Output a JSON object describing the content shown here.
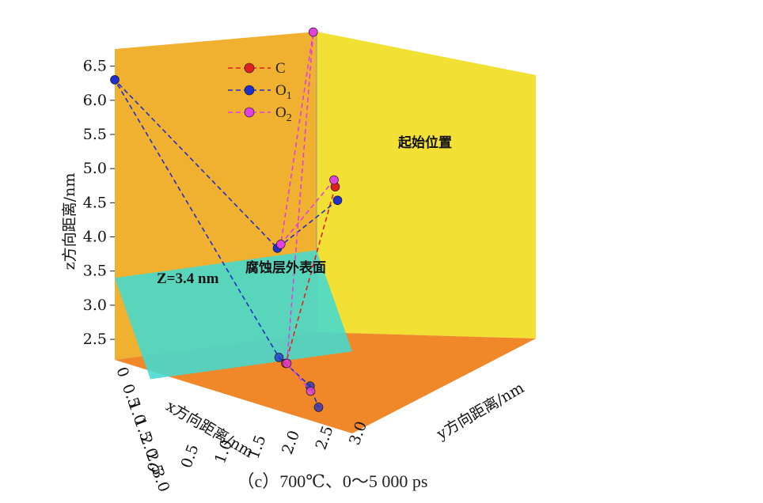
{
  "chart_data": {
    "type": "scatter",
    "subtype": "3d-trajectory",
    "caption": "（c）700℃、0～5 000 ps",
    "xlabel": "x方向距离/nm",
    "ylabel": "y方向距离/nm",
    "zlabel": "z方向距离/nm",
    "xlim": [
      0,
      3.0
    ],
    "ylim": [
      0,
      3.0
    ],
    "zlim": [
      2.2,
      6.6
    ],
    "x_ticks": [
      "0",
      "0.5",
      "1.0",
      "1.5",
      "2.0",
      "2.5",
      "3.0"
    ],
    "y_ticks": [
      "0",
      "0.5",
      "1.0",
      "1.5",
      "2.0",
      "2.5",
      "3.0"
    ],
    "z_ticks": [
      "2.5",
      "3.0",
      "3.5",
      "4.0",
      "4.5",
      "5.0",
      "5.5",
      "6.0",
      "6.5"
    ],
    "grid": false,
    "legend_position": "top-left",
    "colors": {
      "back_wall": "#f0b030",
      "right_wall": "#f2e034",
      "floor": "#f0882a",
      "surface_plane": "#43d9cf",
      "C": "#e02020",
      "O1": "#2030c8",
      "O2": "#e040e0"
    },
    "surface": {
      "z": 3.4,
      "label": "Z=3.4 nm",
      "name": "腐蚀层外表面"
    },
    "annotation_start": "起始位置",
    "series": [
      {
        "name": "C",
        "color": "#e02020",
        "points": [
          {
            "x": 1.85,
            "y": 2.95,
            "z": 5.25
          },
          {
            "x": 2.5,
            "y": 2.1,
            "z": 3.1
          }
        ]
      },
      {
        "name": "O1",
        "name_main": "O",
        "name_sub": "1",
        "color": "#2030c8",
        "points": [
          {
            "x": 2.05,
            "y": 2.95,
            "z": 5.15
          },
          {
            "x": 0.95,
            "y": 2.25,
            "z": 4.0
          },
          {
            "x": 0.0,
            "y": 0.0,
            "z": 6.3
          },
          {
            "x": 2.5,
            "y": 2.0,
            "z": 3.2
          },
          {
            "x": 2.85,
            "y": 2.4,
            "z": 2.9
          },
          {
            "x": 3.0,
            "y": 2.5,
            "z": 2.65
          }
        ]
      },
      {
        "name": "O2",
        "name_main": "O",
        "name_sub": "2",
        "color": "#e040e0",
        "points": [
          {
            "x": 1.75,
            "y": 2.95,
            "z": 5.3
          },
          {
            "x": 0.95,
            "y": 2.3,
            "z": 4.05
          },
          {
            "x": 0.0,
            "y": 2.95,
            "z": 6.6
          },
          {
            "x": 2.6,
            "y": 2.1,
            "z": 3.15
          },
          {
            "x": 2.9,
            "y": 2.4,
            "z": 2.85
          }
        ]
      }
    ]
  }
}
